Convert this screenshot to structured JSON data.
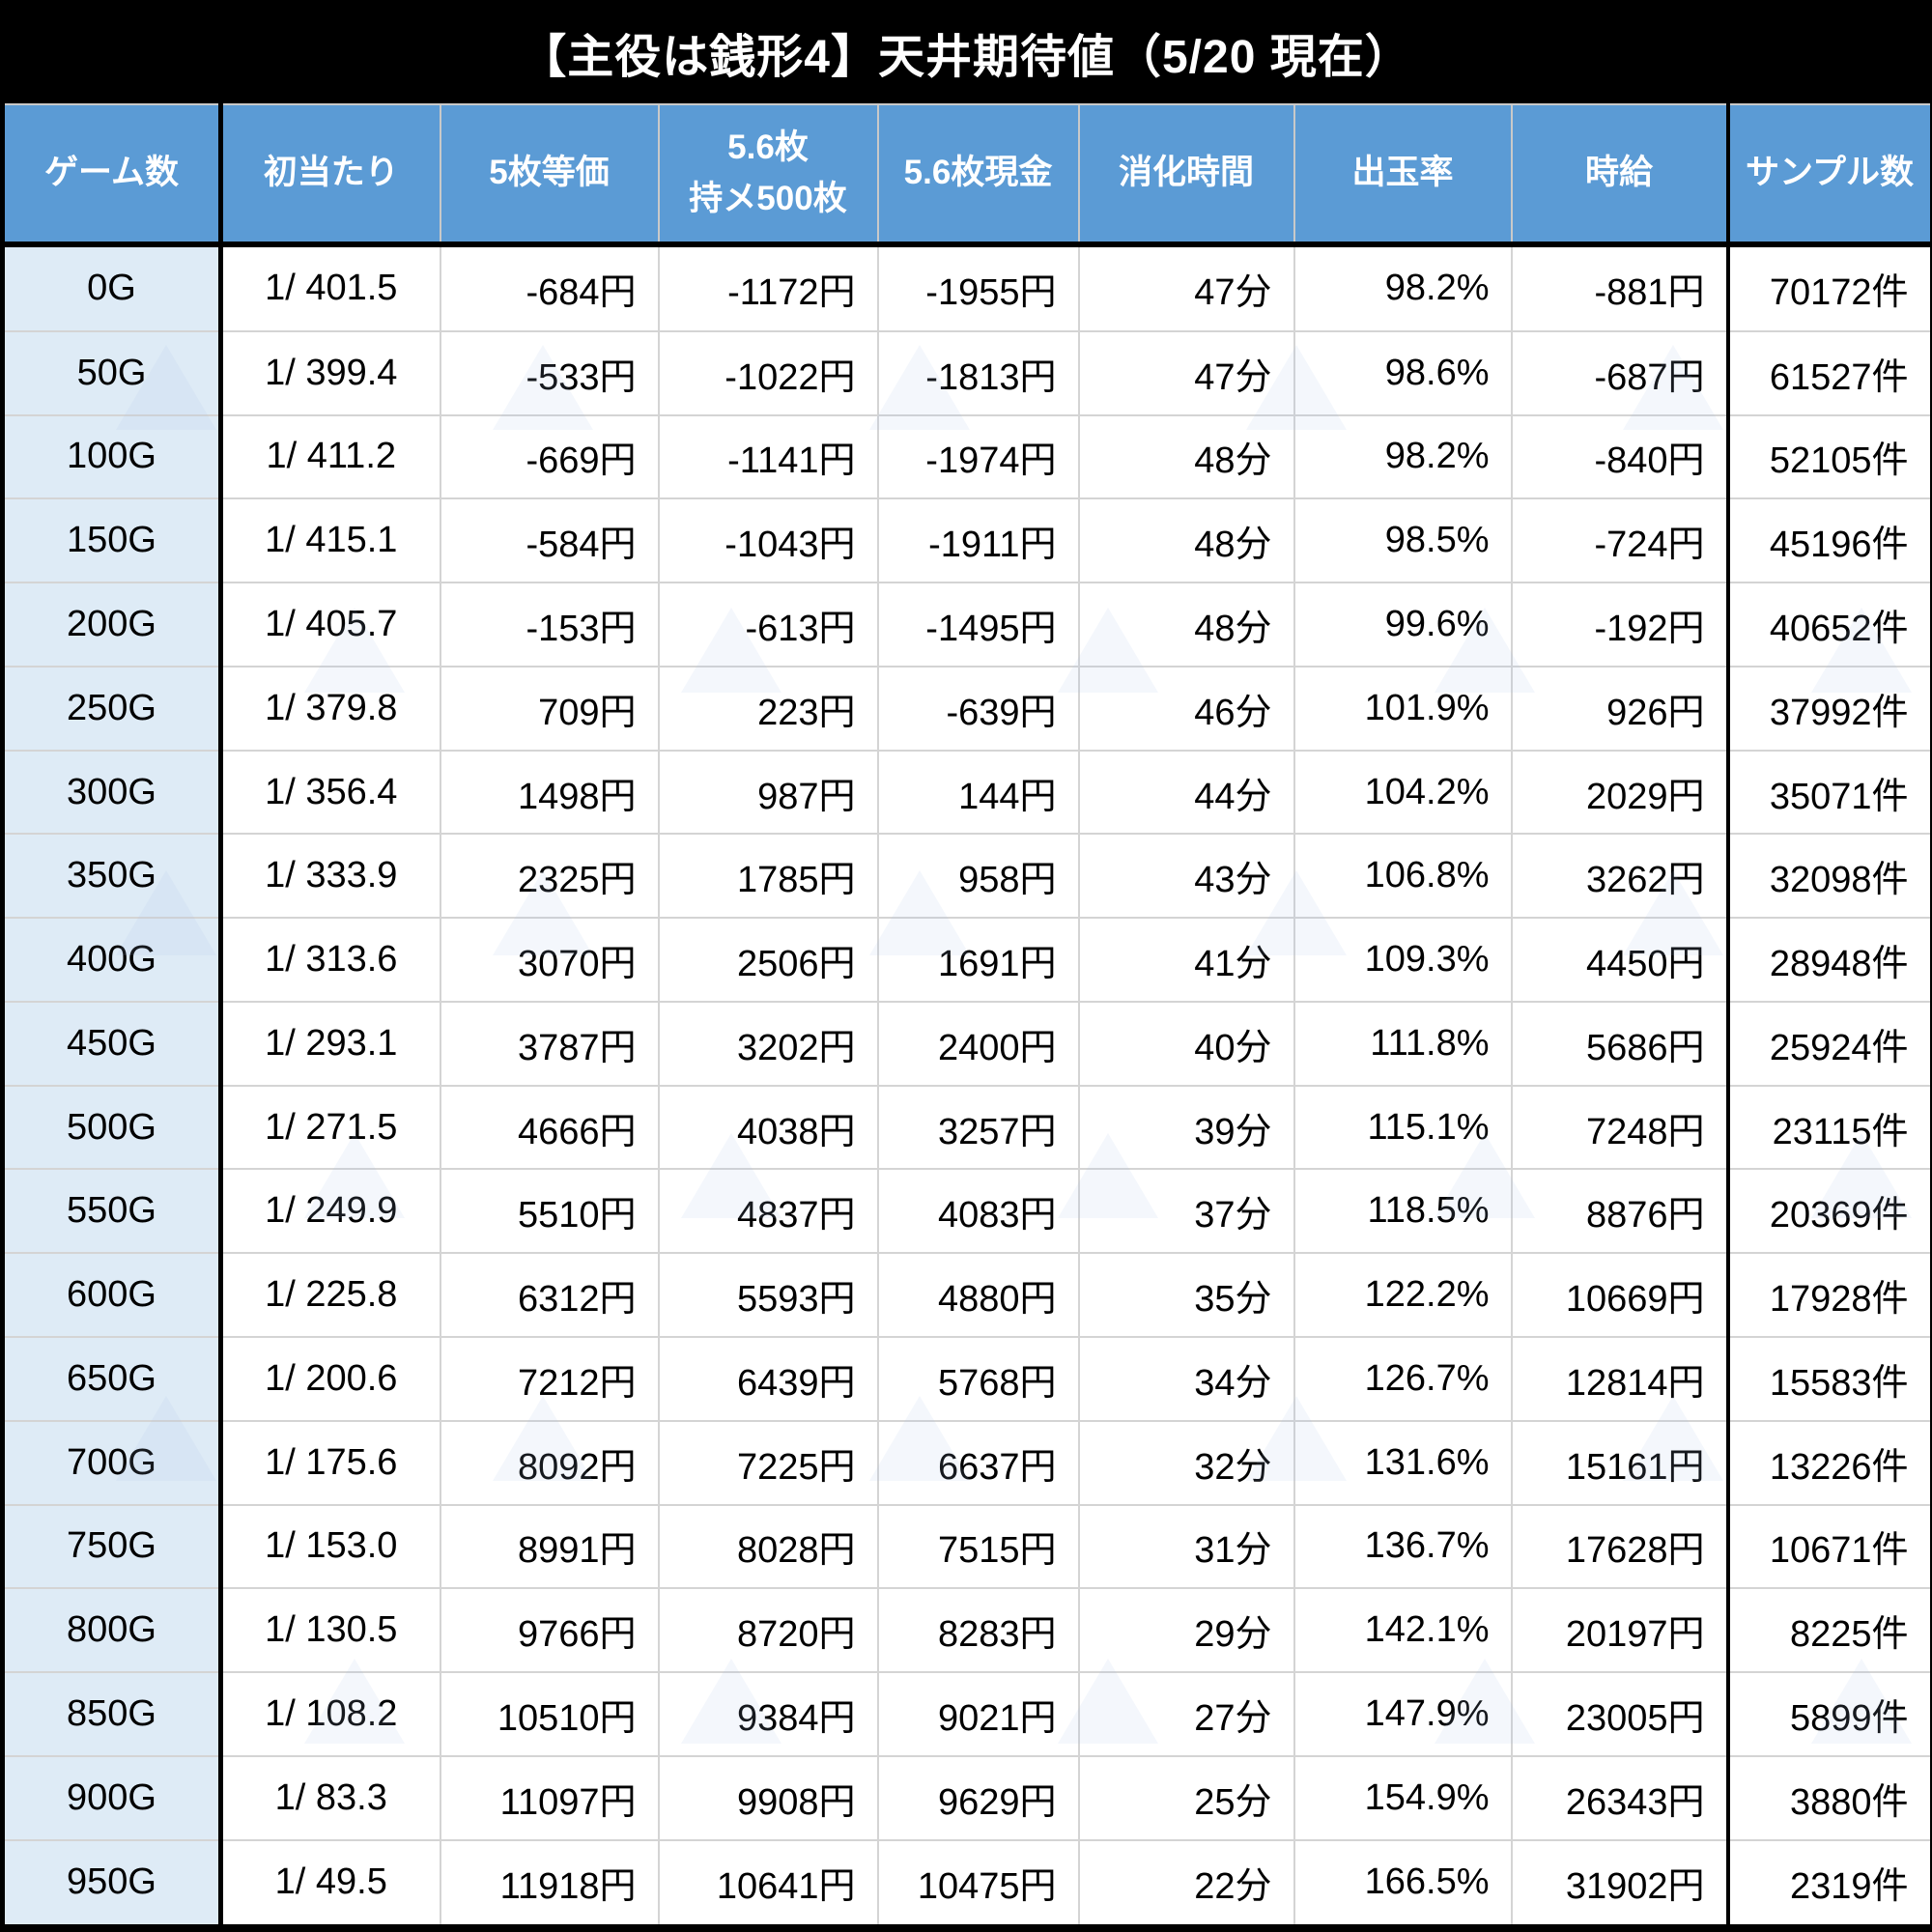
{
  "chart_data": {
    "type": "table",
    "title": "【主役は銭形4】天井期待値（5/20 現在）",
    "columns": [
      "ゲーム数",
      "初当たり",
      "5枚等価",
      "5.6枚\n持メ500枚",
      "5.6枚現金",
      "消化時間",
      "出玉率",
      "時給",
      "サンプル数"
    ],
    "style_legend": {
      "k": "black",
      "r": "red-negative",
      "b": "blue-positive"
    },
    "colors": {
      "header_bg": "#5b9bd5",
      "header_text": "#ffffff",
      "row_label_bg": "#deebf6",
      "negative_text": "#ff0000",
      "positive_text": "#0505ee",
      "grid_line": "#d4d4d4",
      "frame": "#000000",
      "title_text": "#ffffff",
      "page_bg": "#000000"
    },
    "rows": [
      {
        "cells": [
          "0G",
          "1/ 401.5",
          "-684円",
          "-1172円",
          "-1955円",
          "47分",
          "98.2%",
          "-881円",
          "70172件"
        ],
        "styles": [
          "k",
          "k",
          "r",
          "r",
          "r",
          "k",
          "r",
          "r",
          "k"
        ]
      },
      {
        "cells": [
          "50G",
          "1/ 399.4",
          "-533円",
          "-1022円",
          "-1813円",
          "47分",
          "98.6%",
          "-687円",
          "61527件"
        ],
        "styles": [
          "k",
          "k",
          "r",
          "r",
          "r",
          "k",
          "r",
          "r",
          "k"
        ]
      },
      {
        "cells": [
          "100G",
          "1/ 411.2",
          "-669円",
          "-1141円",
          "-1974円",
          "48分",
          "98.2%",
          "-840円",
          "52105件"
        ],
        "styles": [
          "k",
          "k",
          "r",
          "r",
          "r",
          "k",
          "r",
          "r",
          "k"
        ]
      },
      {
        "cells": [
          "150G",
          "1/ 415.1",
          "-584円",
          "-1043円",
          "-1911円",
          "48分",
          "98.5%",
          "-724円",
          "45196件"
        ],
        "styles": [
          "k",
          "k",
          "r",
          "r",
          "r",
          "k",
          "r",
          "r",
          "k"
        ]
      },
      {
        "cells": [
          "200G",
          "1/ 405.7",
          "-153円",
          "-613円",
          "-1495円",
          "48分",
          "99.6%",
          "-192円",
          "40652件"
        ],
        "styles": [
          "k",
          "k",
          "r",
          "r",
          "r",
          "k",
          "r",
          "r",
          "k"
        ]
      },
      {
        "cells": [
          "250G",
          "1/ 379.8",
          "709円",
          "223円",
          "-639円",
          "46分",
          "101.9%",
          "926円",
          "37992件"
        ],
        "styles": [
          "k",
          "k",
          "b",
          "b",
          "r",
          "k",
          "b",
          "b",
          "k"
        ]
      },
      {
        "cells": [
          "300G",
          "1/ 356.4",
          "1498円",
          "987円",
          "144円",
          "44分",
          "104.2%",
          "2029円",
          "35071件"
        ],
        "styles": [
          "k",
          "k",
          "b",
          "b",
          "b",
          "k",
          "b",
          "b",
          "k"
        ]
      },
      {
        "cells": [
          "350G",
          "1/ 333.9",
          "2325円",
          "1785円",
          "958円",
          "43分",
          "106.8%",
          "3262円",
          "32098件"
        ],
        "styles": [
          "k",
          "k",
          "b",
          "b",
          "b",
          "k",
          "b",
          "b",
          "k"
        ]
      },
      {
        "cells": [
          "400G",
          "1/ 313.6",
          "3070円",
          "2506円",
          "1691円",
          "41分",
          "109.3%",
          "4450円",
          "28948件"
        ],
        "styles": [
          "k",
          "k",
          "b",
          "b",
          "b",
          "k",
          "b",
          "b",
          "k"
        ]
      },
      {
        "cells": [
          "450G",
          "1/ 293.1",
          "3787円",
          "3202円",
          "2400円",
          "40分",
          "111.8%",
          "5686円",
          "25924件"
        ],
        "styles": [
          "k",
          "k",
          "b",
          "b",
          "b",
          "k",
          "b",
          "b",
          "k"
        ]
      },
      {
        "cells": [
          "500G",
          "1/ 271.5",
          "4666円",
          "4038円",
          "3257円",
          "39分",
          "115.1%",
          "7248円",
          "23115件"
        ],
        "styles": [
          "k",
          "k",
          "b",
          "b",
          "b",
          "k",
          "b",
          "b",
          "k"
        ]
      },
      {
        "cells": [
          "550G",
          "1/ 249.9",
          "5510円",
          "4837円",
          "4083円",
          "37分",
          "118.5%",
          "8876円",
          "20369件"
        ],
        "styles": [
          "k",
          "k",
          "b",
          "b",
          "b",
          "k",
          "b",
          "b",
          "k"
        ]
      },
      {
        "cells": [
          "600G",
          "1/ 225.8",
          "6312円",
          "5593円",
          "4880円",
          "35分",
          "122.2%",
          "10669円",
          "17928件"
        ],
        "styles": [
          "k",
          "k",
          "b",
          "b",
          "b",
          "k",
          "b",
          "b",
          "k"
        ]
      },
      {
        "cells": [
          "650G",
          "1/ 200.6",
          "7212円",
          "6439円",
          "5768円",
          "34分",
          "126.7%",
          "12814円",
          "15583件"
        ],
        "styles": [
          "k",
          "k",
          "b",
          "b",
          "b",
          "k",
          "b",
          "b",
          "k"
        ]
      },
      {
        "cells": [
          "700G",
          "1/ 175.6",
          "8092円",
          "7225円",
          "6637円",
          "32分",
          "131.6%",
          "15161円",
          "13226件"
        ],
        "styles": [
          "k",
          "k",
          "b",
          "b",
          "b",
          "k",
          "b",
          "b",
          "k"
        ]
      },
      {
        "cells": [
          "750G",
          "1/ 153.0",
          "8991円",
          "8028円",
          "7515円",
          "31分",
          "136.7%",
          "17628円",
          "10671件"
        ],
        "styles": [
          "k",
          "k",
          "b",
          "b",
          "b",
          "k",
          "b",
          "b",
          "k"
        ]
      },
      {
        "cells": [
          "800G",
          "1/ 130.5",
          "9766円",
          "8720円",
          "8283円",
          "29分",
          "142.1%",
          "20197円",
          "8225件"
        ],
        "styles": [
          "k",
          "k",
          "b",
          "b",
          "b",
          "k",
          "b",
          "b",
          "k"
        ]
      },
      {
        "cells": [
          "850G",
          "1/ 108.2",
          "10510円",
          "9384円",
          "9021円",
          "27分",
          "147.9%",
          "23005円",
          "5899件"
        ],
        "styles": [
          "k",
          "k",
          "b",
          "b",
          "b",
          "k",
          "b",
          "b",
          "k"
        ]
      },
      {
        "cells": [
          "900G",
          "1/ 83.3",
          "11097円",
          "9908円",
          "9629円",
          "25分",
          "154.9%",
          "26343円",
          "3880件"
        ],
        "styles": [
          "k",
          "k",
          "b",
          "b",
          "b",
          "k",
          "b",
          "b",
          "k"
        ]
      },
      {
        "cells": [
          "950G",
          "1/ 49.5",
          "11918円",
          "10641円",
          "10475円",
          "22分",
          "166.5%",
          "31902円",
          "2319件"
        ],
        "styles": [
          "k",
          "k",
          "b",
          "b",
          "b",
          "k",
          "b",
          "b",
          "k"
        ]
      }
    ]
  }
}
